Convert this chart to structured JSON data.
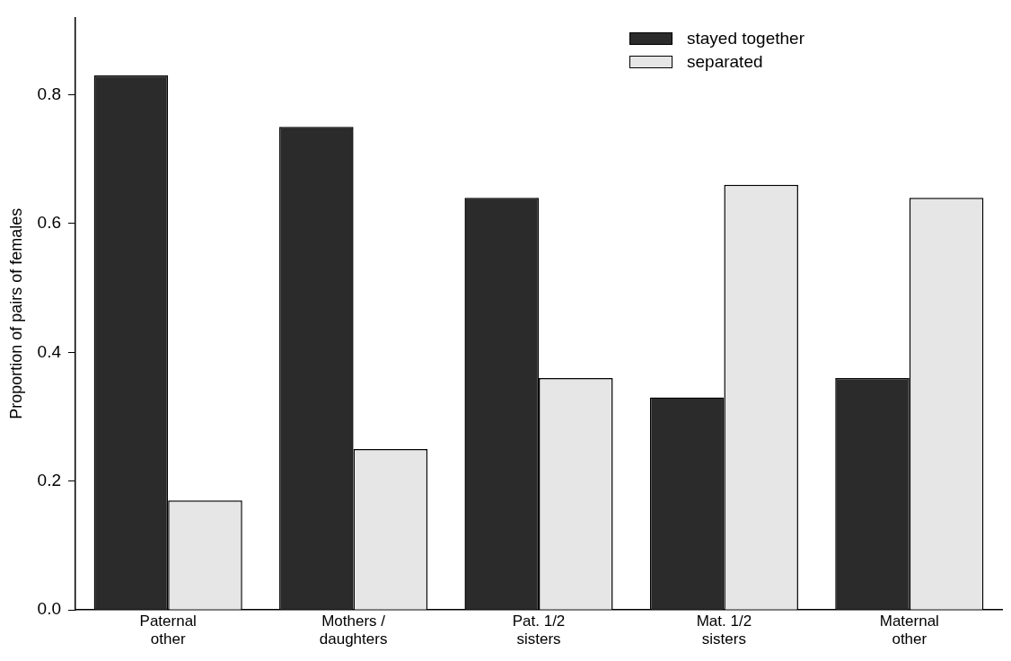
{
  "chart_data": {
    "type": "bar",
    "ylabel": "Proportion of pairs of females",
    "categories": [
      "Paternal other",
      "Mothers / daughters",
      "Pat. 1/2 sisters",
      "Mat. 1/2 sisters",
      "Maternal other"
    ],
    "series": [
      {
        "name": "stayed together",
        "color": "#2b2b2b",
        "values": [
          0.83,
          0.75,
          0.64,
          0.33,
          0.36
        ]
      },
      {
        "name": "separated",
        "color": "#e6e6e6",
        "values": [
          0.17,
          0.25,
          0.36,
          0.66,
          0.64
        ]
      }
    ],
    "ylim": [
      0,
      0.92
    ],
    "yticks": [
      {
        "value": 0,
        "label": "0.0"
      },
      0.2,
      0.4,
      0.6,
      0.8
    ],
    "legend": "top right"
  }
}
